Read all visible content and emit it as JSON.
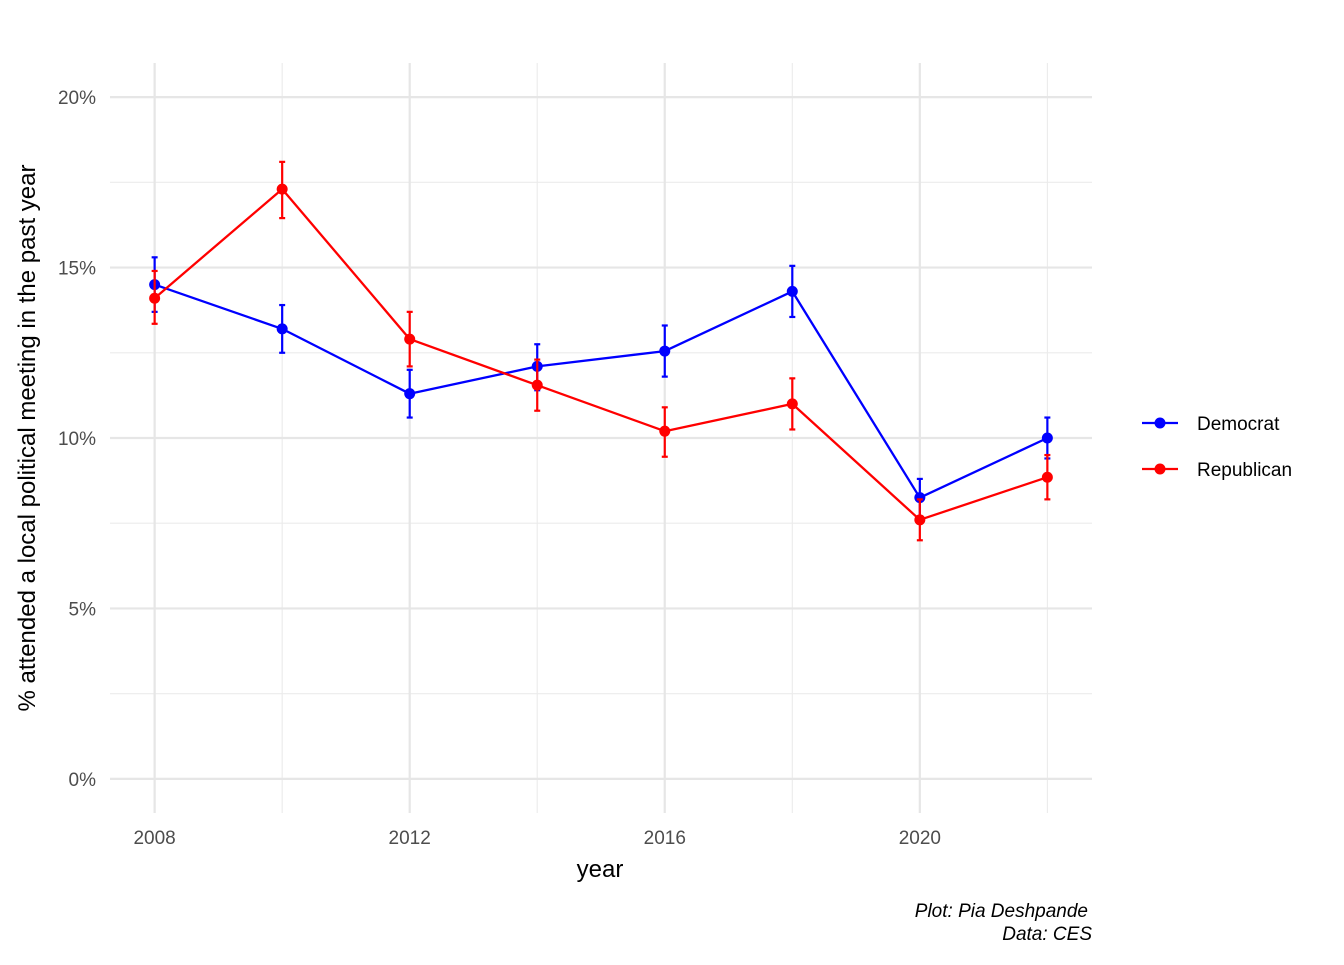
{
  "chart_data": {
    "type": "line",
    "xlabel": "year",
    "ylabel": "% attended a local political meeting in the past year",
    "x_ticks": [
      "2008",
      "2012",
      "2016",
      "2020"
    ],
    "y_ticks": [
      "0%",
      "5%",
      "10%",
      "15%",
      "20%"
    ],
    "xlim": [
      2007.3,
      2022.7
    ],
    "ylim": [
      -1,
      21
    ],
    "grid": true,
    "legend_position": "right",
    "error_bars": true,
    "series": [
      {
        "name": "Democrat",
        "color": "#0000ff",
        "x": [
          2008,
          2010,
          2012,
          2014,
          2016,
          2018,
          2020,
          2022
        ],
        "y": [
          14.5,
          13.2,
          11.3,
          12.1,
          12.55,
          14.3,
          8.25,
          10.0
        ],
        "lower": [
          13.7,
          12.5,
          10.6,
          11.4,
          11.8,
          13.55,
          7.7,
          9.4
        ],
        "upper": [
          15.3,
          13.9,
          12.0,
          12.75,
          13.3,
          15.05,
          8.8,
          10.6
        ]
      },
      {
        "name": "Republican",
        "color": "#ff0000",
        "x": [
          2008,
          2010,
          2012,
          2014,
          2016,
          2018,
          2020,
          2022
        ],
        "y": [
          14.1,
          17.3,
          12.9,
          11.55,
          10.2,
          11.0,
          7.6,
          8.85
        ],
        "lower": [
          13.35,
          16.45,
          12.1,
          10.8,
          9.45,
          10.25,
          7.0,
          8.2
        ],
        "upper": [
          14.9,
          18.1,
          13.7,
          12.3,
          10.9,
          11.75,
          8.2,
          9.5
        ]
      }
    ]
  },
  "caption": {
    "line1": "Plot: Pia Deshpande",
    "line2": "Data: CES"
  }
}
